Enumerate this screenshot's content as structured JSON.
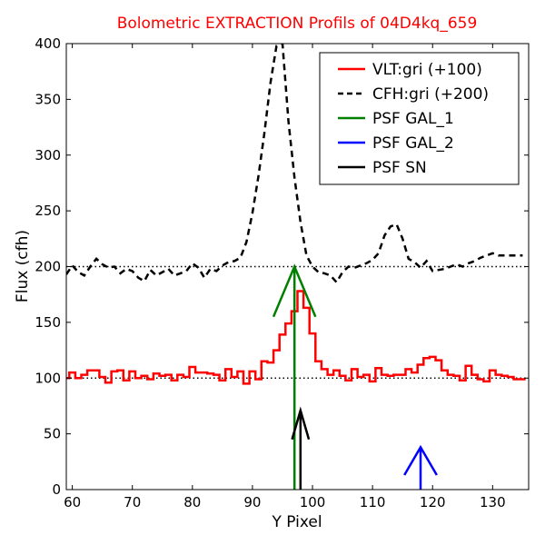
{
  "chart_data": {
    "type": "line",
    "title": "Bolometric EXTRACTION Profils of 04D4kq_659",
    "xlabel": "Y Pixel",
    "ylabel": "Flux (cfh)",
    "xlim": [
      59,
      136
    ],
    "ylim": [
      0,
      400
    ],
    "xticks": [
      60,
      70,
      80,
      90,
      100,
      110,
      120,
      130
    ],
    "yticks": [
      0,
      50,
      100,
      150,
      200,
      250,
      300,
      350,
      400
    ],
    "legend_position": "top-right",
    "colors": {
      "title": "#ff0000",
      "vlt": "#ff0000",
      "cfh": "#000000",
      "psf_gal_1": "#008000",
      "psf_gal_2": "#0000ff",
      "psf_sn": "#000000"
    },
    "reference_lines": [
      100,
      200
    ],
    "series": [
      {
        "name": "VLT:gri (+100)",
        "style": "steps",
        "x": [
          59,
          60,
          61,
          62,
          63,
          64,
          65,
          66,
          67,
          68,
          69,
          70,
          71,
          72,
          73,
          74,
          75,
          76,
          77,
          78,
          79,
          80,
          81,
          82,
          83,
          84,
          85,
          86,
          87,
          88,
          89,
          90,
          91,
          92,
          93,
          94,
          95,
          96,
          97,
          98,
          99,
          100,
          101,
          102,
          103,
          104,
          105,
          106,
          107,
          108,
          109,
          110,
          111,
          112,
          113,
          114,
          115,
          116,
          117,
          118,
          119,
          120,
          121,
          122,
          123,
          124,
          125,
          126,
          127,
          128,
          129,
          130,
          131,
          132,
          133,
          134,
          135
        ],
        "values": [
          100,
          105,
          100,
          103,
          107,
          107,
          101,
          96,
          106,
          107,
          98,
          106,
          100,
          102,
          99,
          104,
          102,
          103,
          98,
          103,
          101,
          110,
          105,
          105,
          104,
          103,
          98,
          108,
          101,
          106,
          95,
          106,
          99,
          115,
          114,
          125,
          139,
          149,
          160,
          178,
          163,
          140,
          115,
          108,
          103,
          107,
          102,
          98,
          108,
          101,
          103,
          97,
          109,
          103,
          102,
          103,
          103,
          108,
          105,
          112,
          118,
          119,
          116,
          107,
          103,
          102,
          98,
          111,
          103,
          99,
          97,
          107,
          103,
          102,
          101,
          99,
          99
        ]
      },
      {
        "name": "CFH:gri (+200)",
        "style": "dashed",
        "x": [
          59,
          60,
          61,
          62,
          63,
          64,
          65,
          66,
          67,
          68,
          69,
          70,
          71,
          72,
          73,
          74,
          75,
          76,
          77,
          78,
          79,
          80,
          81,
          82,
          83,
          84,
          85,
          86,
          87,
          88,
          89,
          90,
          91,
          92,
          93,
          94,
          95,
          96,
          97,
          98,
          99,
          100,
          101,
          102,
          103,
          104,
          105,
          106,
          107,
          108,
          109,
          110,
          111,
          112,
          113,
          114,
          115,
          116,
          117,
          118,
          119,
          120,
          121,
          122,
          123,
          124,
          125,
          126,
          127,
          128,
          129,
          130,
          131,
          132,
          133,
          134,
          135
        ],
        "values": [
          193,
          201,
          195,
          192,
          200,
          207,
          202,
          199,
          200,
          194,
          198,
          196,
          190,
          187,
          197,
          192,
          195,
          198,
          192,
          194,
          196,
          203,
          199,
          190,
          198,
          196,
          201,
          204,
          205,
          208,
          222,
          248,
          281,
          320,
          365,
          398,
          400,
          330,
          280,
          240,
          210,
          200,
          195,
          194,
          192,
          186,
          195,
          200,
          199,
          201,
          203,
          206,
          212,
          228,
          236,
          238,
          225,
          207,
          204,
          199,
          205,
          196,
          197,
          198,
          200,
          202,
          200,
          203,
          205,
          208,
          210,
          212,
          210,
          210,
          210,
          210,
          210
        ]
      }
    ],
    "markers": [
      {
        "name": "PSF GAL_1",
        "x": 97,
        "y": 200
      },
      {
        "name": "PSF GAL_2",
        "x": 118,
        "y": 38
      },
      {
        "name": "PSF SN",
        "x": 98,
        "y": 71
      }
    ]
  }
}
